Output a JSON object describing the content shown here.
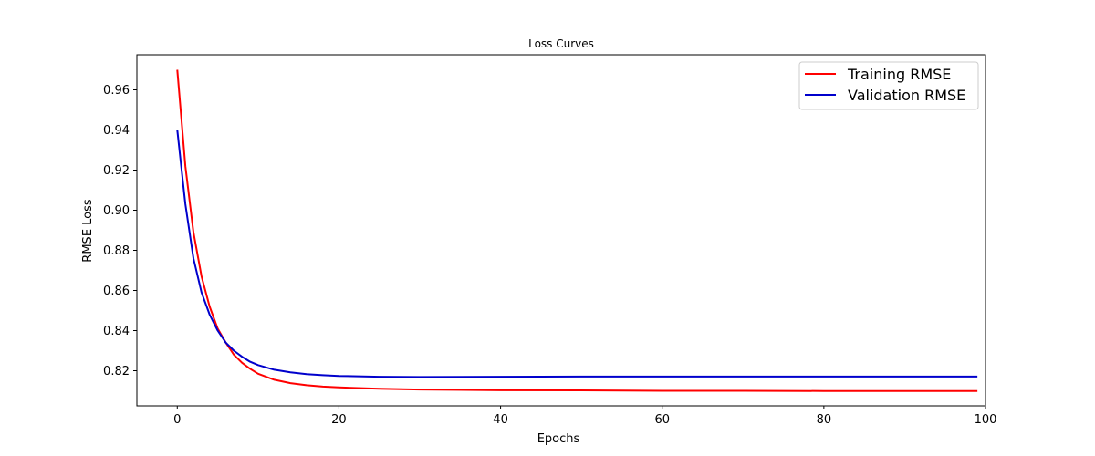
{
  "chart_data": {
    "type": "line",
    "title": "Loss Curves",
    "xlabel": "Epochs",
    "ylabel": "RMSE Loss",
    "xlim": [
      -5,
      100
    ],
    "ylim": [
      0.8025,
      0.9775
    ],
    "xticks": [
      0,
      20,
      40,
      60,
      80,
      100
    ],
    "xtick_labels": [
      "0",
      "20",
      "40",
      "60",
      "80",
      "100"
    ],
    "yticks": [
      0.82,
      0.84,
      0.86,
      0.88,
      0.9,
      0.92,
      0.94,
      0.96
    ],
    "ytick_labels": [
      "0.82",
      "0.84",
      "0.86",
      "0.88",
      "0.90",
      "0.92",
      "0.94",
      "0.96"
    ],
    "grid": false,
    "legend_position": "top-right",
    "x": [
      0,
      1,
      2,
      3,
      4,
      5,
      6,
      7,
      8,
      9,
      10,
      12,
      14,
      16,
      18,
      20,
      25,
      30,
      40,
      50,
      60,
      70,
      80,
      90,
      99
    ],
    "series": [
      {
        "name": "Training RMSE",
        "color": "#ff0000",
        "values": [
          0.97,
          0.922,
          0.889,
          0.867,
          0.852,
          0.841,
          0.834,
          0.828,
          0.824,
          0.821,
          0.8185,
          0.8155,
          0.8138,
          0.8128,
          0.8121,
          0.8117,
          0.811,
          0.8106,
          0.8103,
          0.8102,
          0.81,
          0.81,
          0.8099,
          0.8099,
          0.8099
        ]
      },
      {
        "name": "Validation RMSE",
        "color": "#0000cc",
        "values": [
          0.94,
          0.903,
          0.876,
          0.859,
          0.848,
          0.84,
          0.834,
          0.83,
          0.827,
          0.8245,
          0.8228,
          0.8205,
          0.8192,
          0.8183,
          0.8178,
          0.8174,
          0.817,
          0.8169,
          0.817,
          0.8171,
          0.8171,
          0.8171,
          0.8171,
          0.8171,
          0.8171
        ]
      }
    ]
  }
}
